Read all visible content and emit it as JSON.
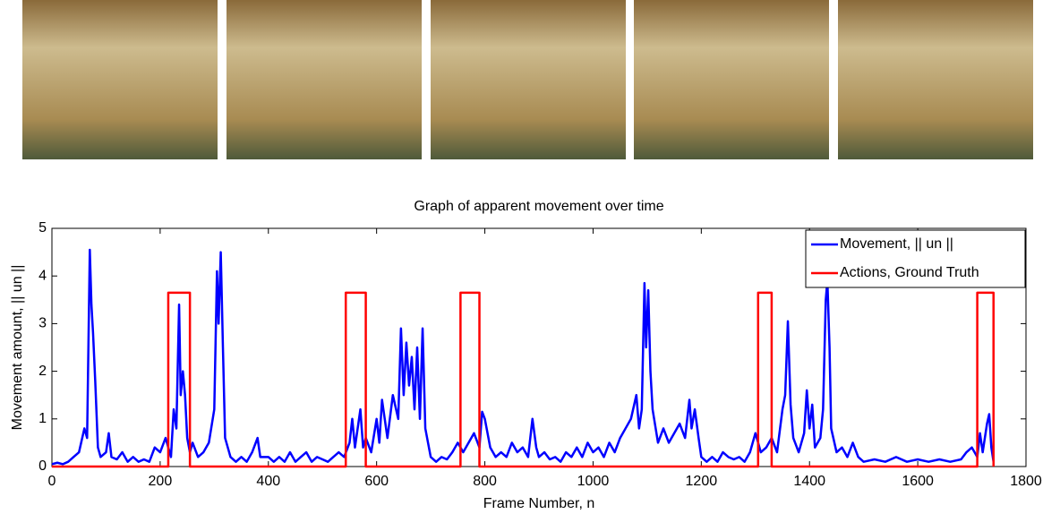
{
  "chart_data": {
    "type": "line",
    "title": "Graph of apparent movement over time",
    "x_label": "Frame Number, n",
    "y_label": "Movement amount, || un ||",
    "xlim": [
      0,
      1800
    ],
    "ylim": [
      0,
      5
    ],
    "xticks": [
      0,
      200,
      400,
      600,
      800,
      1000,
      1200,
      1400,
      1600,
      1800
    ],
    "yticks": [
      0,
      1,
      2,
      3,
      4,
      5
    ],
    "legend": "upper right",
    "series": [
      {
        "name": "Movement, || un ||",
        "color": "#0000ff",
        "x": [
          0,
          10,
          20,
          30,
          40,
          50,
          60,
          65,
          70,
          73,
          76,
          80,
          85,
          90,
          100,
          105,
          110,
          120,
          130,
          140,
          150,
          160,
          170,
          180,
          190,
          200,
          210,
          220,
          225,
          230,
          235,
          238,
          242,
          246,
          250,
          255,
          260,
          270,
          280,
          290,
          300,
          305,
          308,
          312,
          316,
          320,
          330,
          340,
          350,
          360,
          370,
          380,
          385,
          400,
          410,
          420,
          430,
          440,
          450,
          460,
          470,
          480,
          490,
          500,
          510,
          520,
          530,
          540,
          550,
          555,
          560,
          570,
          575,
          580,
          590,
          600,
          605,
          610,
          620,
          630,
          640,
          645,
          650,
          655,
          660,
          665,
          670,
          675,
          680,
          685,
          690,
          700,
          710,
          720,
          730,
          740,
          750,
          760,
          770,
          780,
          790,
          795,
          800,
          810,
          820,
          830,
          840,
          850,
          860,
          870,
          880,
          888,
          895,
          900,
          910,
          920,
          930,
          940,
          950,
          960,
          970,
          980,
          990,
          1000,
          1010,
          1020,
          1030,
          1040,
          1050,
          1060,
          1070,
          1080,
          1085,
          1090,
          1095,
          1098,
          1102,
          1106,
          1110,
          1120,
          1130,
          1140,
          1150,
          1160,
          1170,
          1178,
          1182,
          1188,
          1195,
          1200,
          1210,
          1220,
          1230,
          1240,
          1250,
          1260,
          1270,
          1280,
          1290,
          1300,
          1310,
          1320,
          1330,
          1340,
          1350,
          1355,
          1360,
          1365,
          1370,
          1380,
          1390,
          1395,
          1400,
          1405,
          1410,
          1420,
          1425,
          1430,
          1433,
          1437,
          1440,
          1450,
          1460,
          1470,
          1480,
          1490,
          1500,
          1520,
          1540,
          1560,
          1580,
          1600,
          1620,
          1640,
          1660,
          1680,
          1690,
          1700,
          1710,
          1715,
          1720,
          1728,
          1732,
          1736,
          1740
        ],
        "values": [
          0.05,
          0.08,
          0.05,
          0.1,
          0.2,
          0.3,
          0.8,
          0.6,
          4.55,
          3.4,
          2.8,
          1.8,
          0.4,
          0.2,
          0.3,
          0.7,
          0.2,
          0.15,
          0.3,
          0.1,
          0.2,
          0.1,
          0.15,
          0.1,
          0.4,
          0.3,
          0.6,
          0.2,
          1.2,
          0.8,
          3.4,
          1.5,
          2.0,
          1.5,
          0.6,
          0.3,
          0.5,
          0.2,
          0.3,
          0.5,
          1.2,
          4.1,
          3.0,
          4.5,
          2.5,
          0.6,
          0.2,
          0.1,
          0.2,
          0.1,
          0.3,
          0.6,
          0.2,
          0.2,
          0.1,
          0.2,
          0.1,
          0.3,
          0.1,
          0.2,
          0.3,
          0.1,
          0.2,
          0.15,
          0.1,
          0.2,
          0.3,
          0.2,
          0.5,
          1.0,
          0.4,
          1.2,
          0.4,
          0.6,
          0.3,
          1.0,
          0.5,
          1.4,
          0.6,
          1.5,
          1.0,
          2.9,
          1.5,
          2.6,
          1.7,
          2.3,
          1.2,
          2.5,
          1.0,
          2.9,
          0.8,
          0.2,
          0.1,
          0.2,
          0.15,
          0.3,
          0.5,
          0.3,
          0.5,
          0.7,
          0.4,
          1.15,
          1.0,
          0.4,
          0.2,
          0.3,
          0.2,
          0.5,
          0.3,
          0.4,
          0.2,
          1.0,
          0.4,
          0.2,
          0.3,
          0.15,
          0.2,
          0.1,
          0.3,
          0.2,
          0.4,
          0.2,
          0.5,
          0.3,
          0.4,
          0.2,
          0.5,
          0.3,
          0.6,
          0.8,
          1.0,
          1.5,
          0.8,
          1.2,
          3.85,
          2.5,
          3.7,
          2.0,
          1.2,
          0.5,
          0.8,
          0.5,
          0.7,
          0.9,
          0.6,
          1.4,
          0.8,
          1.2,
          0.6,
          0.2,
          0.1,
          0.2,
          0.1,
          0.3,
          0.2,
          0.15,
          0.2,
          0.1,
          0.3,
          0.7,
          0.3,
          0.4,
          0.6,
          0.3,
          1.2,
          1.5,
          3.05,
          1.3,
          0.6,
          0.3,
          0.7,
          1.6,
          0.8,
          1.3,
          0.4,
          0.6,
          1.2,
          3.5,
          3.9,
          2.5,
          0.8,
          0.3,
          0.4,
          0.2,
          0.5,
          0.2,
          0.1,
          0.15,
          0.1,
          0.2,
          0.1,
          0.15,
          0.1,
          0.15,
          0.1,
          0.15,
          0.3,
          0.4,
          0.2,
          0.7,
          0.3,
          0.9,
          1.1,
          0.4,
          0.1
        ]
      },
      {
        "name": "Actions, Ground Truth",
        "color": "#ff0000",
        "x": [
          0,
          215,
          215,
          255,
          255,
          543,
          543,
          580,
          580,
          755,
          755,
          790,
          790,
          1305,
          1305,
          1330,
          1330,
          1710,
          1710,
          1740,
          1740
        ],
        "values": [
          0,
          0,
          3.65,
          3.65,
          0,
          0,
          3.65,
          3.65,
          0,
          0,
          3.65,
          3.65,
          0,
          0,
          3.65,
          3.65,
          0,
          0,
          3.65,
          3.65,
          0
        ]
      }
    ]
  }
}
